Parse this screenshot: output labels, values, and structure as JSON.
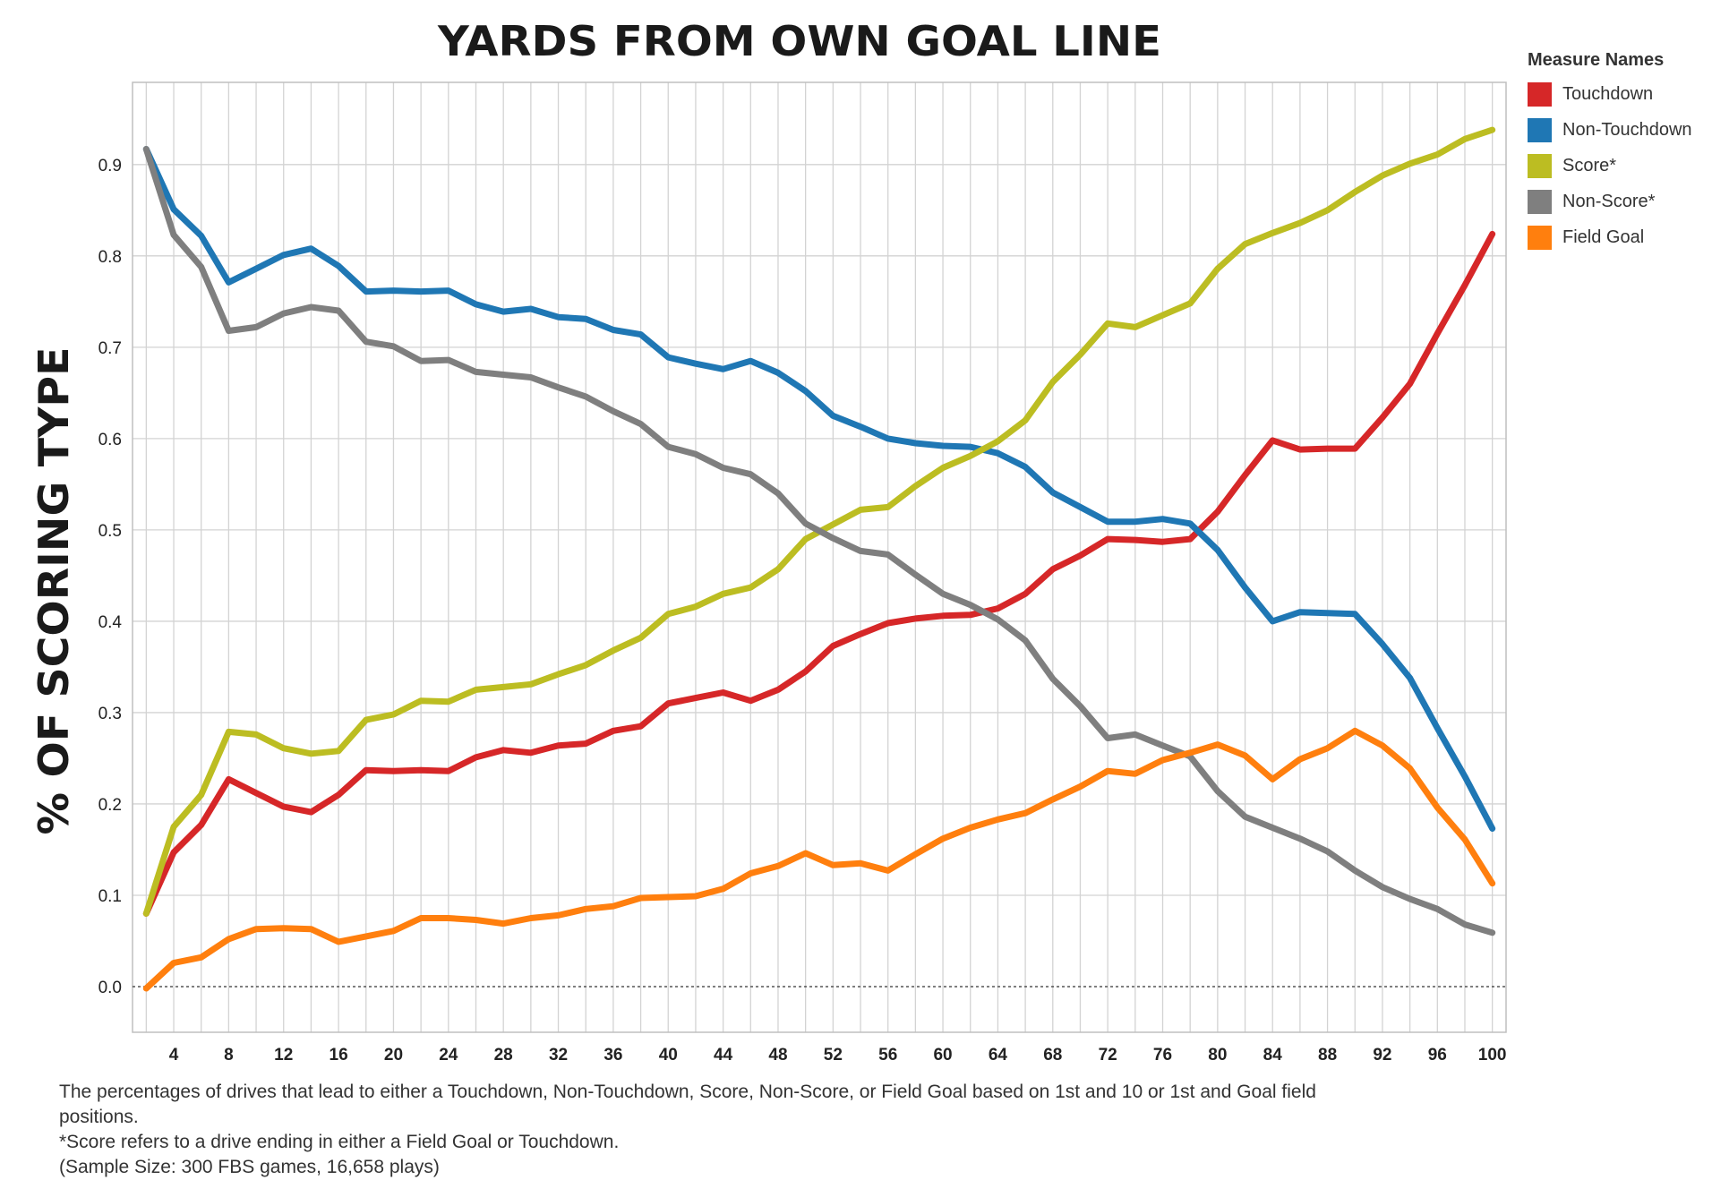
{
  "chart_data": {
    "type": "line",
    "title": "YARDS FROM OWN GOAL LINE",
    "xlabel": "",
    "ylabel": "% OF SCORING TYPE",
    "xlim": [
      1,
      101
    ],
    "ylim": [
      -0.05,
      0.99
    ],
    "x_ticks": [
      4,
      8,
      12,
      16,
      20,
      24,
      28,
      32,
      36,
      40,
      44,
      48,
      52,
      56,
      60,
      64,
      68,
      72,
      76,
      80,
      84,
      88,
      92,
      96,
      100
    ],
    "y_ticks": [
      0.0,
      0.1,
      0.2,
      0.3,
      0.4,
      0.5,
      0.6,
      0.7,
      0.8,
      0.9
    ],
    "y_tick_labels": [
      "0.0",
      "0.1",
      "0.2",
      "0.3",
      "0.4",
      "0.5",
      "0.6",
      "0.7",
      "0.8",
      "0.9"
    ],
    "grid": true,
    "legend": {
      "title": "Measure Names",
      "placement": "right"
    },
    "x": [
      2,
      4,
      6,
      8,
      10,
      12,
      14,
      16,
      18,
      20,
      22,
      24,
      26,
      28,
      30,
      32,
      34,
      36,
      38,
      40,
      42,
      44,
      46,
      48,
      50,
      52,
      54,
      56,
      58,
      60,
      62,
      64,
      66,
      68,
      70,
      72,
      74,
      76,
      78,
      80,
      82,
      84,
      86,
      88,
      90,
      92,
      94,
      96,
      98,
      100
    ],
    "series": [
      {
        "name": "Touchdown",
        "color": "#d62728",
        "values": [
          0.08,
          0.147,
          0.177,
          0.227,
          0.212,
          0.197,
          0.191,
          0.21,
          0.237,
          0.236,
          0.237,
          0.236,
          0.251,
          0.259,
          0.256,
          0.264,
          0.266,
          0.28,
          0.285,
          0.31,
          0.316,
          0.322,
          0.313,
          0.325,
          0.345,
          0.373,
          0.386,
          0.398,
          0.403,
          0.406,
          0.407,
          0.414,
          0.43,
          0.457,
          0.472,
          0.49,
          0.489,
          0.487,
          0.49,
          0.52,
          0.56,
          0.598,
          0.588,
          0.589,
          0.589,
          0.623,
          0.66,
          0.715,
          0.768,
          0.824
        ]
      },
      {
        "name": "Non-Touchdown",
        "color": "#1f77b4",
        "values": [
          0.917,
          0.851,
          0.822,
          0.771,
          0.786,
          0.801,
          0.808,
          0.789,
          0.761,
          0.762,
          0.761,
          0.762,
          0.747,
          0.739,
          0.742,
          0.733,
          0.731,
          0.719,
          0.714,
          0.689,
          0.682,
          0.676,
          0.685,
          0.672,
          0.652,
          0.625,
          0.613,
          0.6,
          0.595,
          0.592,
          0.591,
          0.584,
          0.569,
          0.541,
          0.525,
          0.509,
          0.509,
          0.512,
          0.507,
          0.478,
          0.437,
          0.4,
          0.41,
          0.409,
          0.408,
          0.375,
          0.338,
          0.283,
          0.23,
          0.173
        ]
      },
      {
        "name": "Score*",
        "color": "#bcbd22",
        "values": [
          0.08,
          0.175,
          0.21,
          0.279,
          0.276,
          0.261,
          0.255,
          0.258,
          0.292,
          0.298,
          0.313,
          0.312,
          0.325,
          0.328,
          0.331,
          0.342,
          0.352,
          0.368,
          0.382,
          0.408,
          0.416,
          0.43,
          0.437,
          0.457,
          0.49,
          0.506,
          0.522,
          0.525,
          0.548,
          0.568,
          0.581,
          0.597,
          0.62,
          0.662,
          0.692,
          0.726,
          0.722,
          0.735,
          0.748,
          0.786,
          0.813,
          0.825,
          0.836,
          0.85,
          0.87,
          0.888,
          0.901,
          0.911,
          0.928,
          0.938
        ]
      },
      {
        "name": "Non-Score*",
        "color": "#7f7f7f",
        "values": [
          0.917,
          0.823,
          0.788,
          0.718,
          0.722,
          0.737,
          0.744,
          0.74,
          0.706,
          0.701,
          0.685,
          0.686,
          0.673,
          0.67,
          0.667,
          0.656,
          0.646,
          0.63,
          0.616,
          0.591,
          0.583,
          0.568,
          0.561,
          0.54,
          0.507,
          0.491,
          0.477,
          0.473,
          0.451,
          0.43,
          0.418,
          0.402,
          0.379,
          0.337,
          0.307,
          0.272,
          0.276,
          0.264,
          0.252,
          0.214,
          0.186,
          0.174,
          0.162,
          0.148,
          0.127,
          0.109,
          0.096,
          0.085,
          0.068,
          0.059
        ]
      },
      {
        "name": "Field Goal",
        "color": "#ff7f0e",
        "values": [
          -0.002,
          0.026,
          0.032,
          0.052,
          0.063,
          0.064,
          0.063,
          0.049,
          0.055,
          0.061,
          0.075,
          0.075,
          0.073,
          0.069,
          0.075,
          0.078,
          0.085,
          0.088,
          0.097,
          0.098,
          0.099,
          0.107,
          0.124,
          0.132,
          0.146,
          0.133,
          0.135,
          0.127,
          0.145,
          0.162,
          0.174,
          0.183,
          0.19,
          0.205,
          0.219,
          0.236,
          0.233,
          0.248,
          0.256,
          0.265,
          0.253,
          0.227,
          0.249,
          0.261,
          0.28,
          0.264,
          0.239,
          0.196,
          0.161,
          0.113
        ]
      }
    ]
  },
  "footnote": {
    "line1": "The percentages of drives that lead to either a Touchdown, Non-Touchdown, Score, Non-Score, or Field Goal based on 1st and 10 or 1st and Goal field",
    "line2": "positions.",
    "line3": "*Score refers to a drive ending in either a Field Goal or Touchdown.",
    "line4": "(Sample Size: 300 FBS games, 16,658 plays)"
  }
}
